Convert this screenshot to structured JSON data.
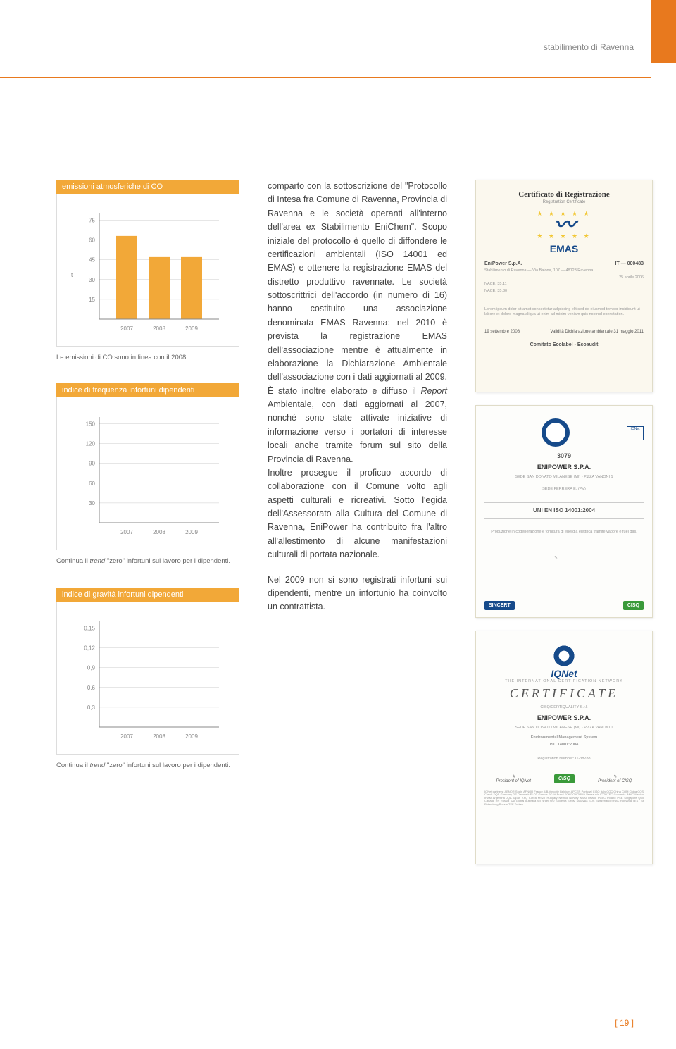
{
  "header": {
    "location": "stabilimento di Ravenna"
  },
  "chart1": {
    "type": "bar",
    "title": "emissioni atmosferiche di CO",
    "categories": [
      "2007",
      "2008",
      "2009"
    ],
    "values": [
      63,
      47,
      47
    ],
    "yticks": [
      15,
      30,
      45,
      60,
      75
    ],
    "ylim": [
      0,
      80
    ],
    "y_unit": "t",
    "bar_color": "#f2a838",
    "grid_color": "#cccccc",
    "axis_color": "#888888",
    "caption": "Le emissioni di CO sono in linea con il 2008."
  },
  "chart2": {
    "type": "bar",
    "title": "indice di frequenza infortuni dipendenti",
    "categories": [
      "2007",
      "2008",
      "2009"
    ],
    "values": [
      0,
      0,
      0
    ],
    "yticks": [
      30,
      60,
      90,
      120,
      150
    ],
    "ylim": [
      0,
      160
    ],
    "bar_color": "#f2a838",
    "grid_color": "#cccccc",
    "axis_color": "#888888",
    "caption_prefix": "Continua il ",
    "caption_em": "trend",
    "caption_suffix": " \"zero\" infortuni sul lavoro per i dipendenti."
  },
  "chart3": {
    "type": "bar",
    "title": "indice di gravità infortuni dipendenti",
    "categories": [
      "2007",
      "2008",
      "2009"
    ],
    "values": [
      0,
      0,
      0
    ],
    "yticks": [
      "0,3",
      "0,6",
      "0,9",
      "0,12",
      "0,15"
    ],
    "ylim": [
      0,
      0.16
    ],
    "bar_color": "#f2a838",
    "grid_color": "#cccccc",
    "axis_color": "#888888",
    "caption_prefix": "Continua il ",
    "caption_em": "trend",
    "caption_suffix": " \"zero\" infortuni sul lavoro per i dipendenti."
  },
  "body": {
    "p1_a": "comparto con la sottoscrizione del \"Protocollo di Intesa fra Comune di Ravenna, Provincia di Ravenna e le società operanti all'interno dell'area ex Stabilimento EniChem\". Scopo iniziale del protocollo è quello di diffondere le certificazioni ambientali (ISO 14001 ed EMAS) e ottenere la registrazione EMAS del distretto produttivo ravennate. Le società sottoscrittrici dell'accordo (in numero di 16) hanno costituito una associazione denominata EMAS Ravenna: nel 2010 è prevista la registrazione EMAS dell'associazione mentre è attualmente in elaborazione la Dichiarazione Ambientale dell'associazione con i dati aggiornati al 2009. È stato inoltre elaborato e diffuso il ",
    "p1_em": "Report",
    "p1_b": " Ambientale, con dati aggiornati al 2007, nonché sono state attivate iniziative di informazione verso i portatori di interesse locali anche tramite forum sul sito della Provincia di Ravenna.",
    "p1_c": "Inoltre prosegue il proficuo accordo di collaborazione con il Comune volto agli aspetti culturali e ricreativi. Sotto l'egida dell'Assessorato alla Cultura del Comune di Ravenna, EniPower ha contribuito fra l'altro all'allestimento di alcune manifestazioni culturali di portata nazionale.",
    "p2": "Nel 2009 non si sono registrati infortuni sui dipendenti, mentre un infortunio ha coinvolto un contrattista."
  },
  "certs": {
    "emas": {
      "title": "Certificato di Registrazione",
      "subtitle": "Registration Certificate",
      "logo_text": "EMAS",
      "company": "EniPower S.p.A.",
      "addr": "Stabilimento di Ravenna — Via Baiona, 107 — 48123 Ravenna",
      "reg_no": "IT — 000483",
      "reg_date": "25 aprile 2006",
      "nace1": "NACE: 35.11",
      "nace2": "NACE: 35.30",
      "validity_label": "Validità Dichiarazione ambientale",
      "validity_date": "31 maggio 2011",
      "signed_date": "19 settembre 2008",
      "committee": "Comitato Ecolabel - Ecoaudit"
    },
    "iso": {
      "cert_no": "3079",
      "company": "ENIPOWER S.P.A.",
      "addr1": "SEDE SAN DONATO MILANESE (MI) - P.ZZA VANONI 1",
      "addr2": "SEDE FERRERA E. (PV)",
      "standard": "UNI EN ISO 14001:2004",
      "badge_left": "SINCERT",
      "badge_right": "CISQ"
    },
    "iqnet": {
      "logo_text": "IQNet",
      "tag": "CERTIFICATE",
      "network": "THE INTERNATIONAL CERTIFICATION NETWORK",
      "issuer": "CISQ/CERTIQUALITY S.r.l.",
      "company": "ENIPOWER S.P.A.",
      "addr": "SEDE SAN DONATO MILANESE (MI) - P.ZZA VANONI 1",
      "scope": "Environmental Management System",
      "standard": "ISO 14001:2004",
      "reg_no": "Registration Number: IT-38288",
      "sig_left": "President of IQNet",
      "sig_right": "President of CISQ",
      "badge": "CISQ"
    }
  },
  "page_number": "19"
}
